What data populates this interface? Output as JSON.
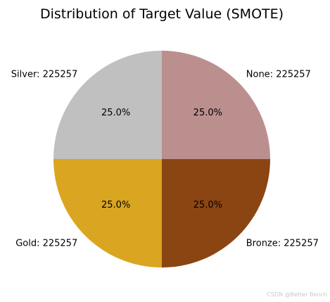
{
  "chart_data": {
    "type": "pie",
    "title": "Distribution of Target Value (SMOTE)",
    "categories": [
      "None",
      "Bronze",
      "Gold",
      "Silver"
    ],
    "values": [
      225257,
      225257,
      225257,
      225257
    ],
    "percent_labels": [
      "25.0%",
      "25.0%",
      "25.0%",
      "25.0%"
    ],
    "slice_labels": [
      "None: 225257",
      "Bronze: 225257",
      "Gold: 225257",
      "Silver: 225257"
    ],
    "colors": [
      "#bc8f8f",
      "#8b4513",
      "#daa520",
      "#c0c0c0"
    ],
    "start_angle_deg": 90,
    "direction": "clockwise"
  },
  "watermark": "CSDN @Better Bench"
}
